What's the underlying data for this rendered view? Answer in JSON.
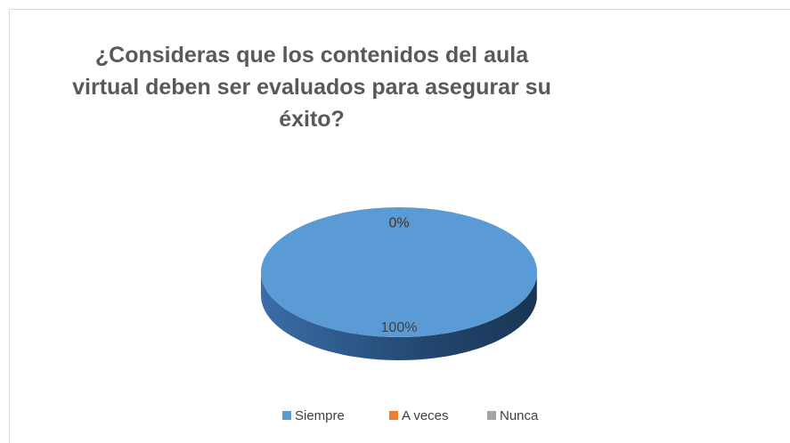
{
  "chart_data": {
    "type": "pie",
    "title": "¿Consideras que los contenidos del aula virtual deben ser evaluados para asegurar su éxito?",
    "categories": [
      "Siempre",
      "A veces",
      "Nunca"
    ],
    "values": [
      100,
      0,
      0
    ],
    "value_labels": [
      "100%",
      "0%",
      "0%"
    ],
    "colors": [
      "#5b9bd5",
      "#ed7d31",
      "#a5a5a5"
    ],
    "legend": "bottom"
  }
}
